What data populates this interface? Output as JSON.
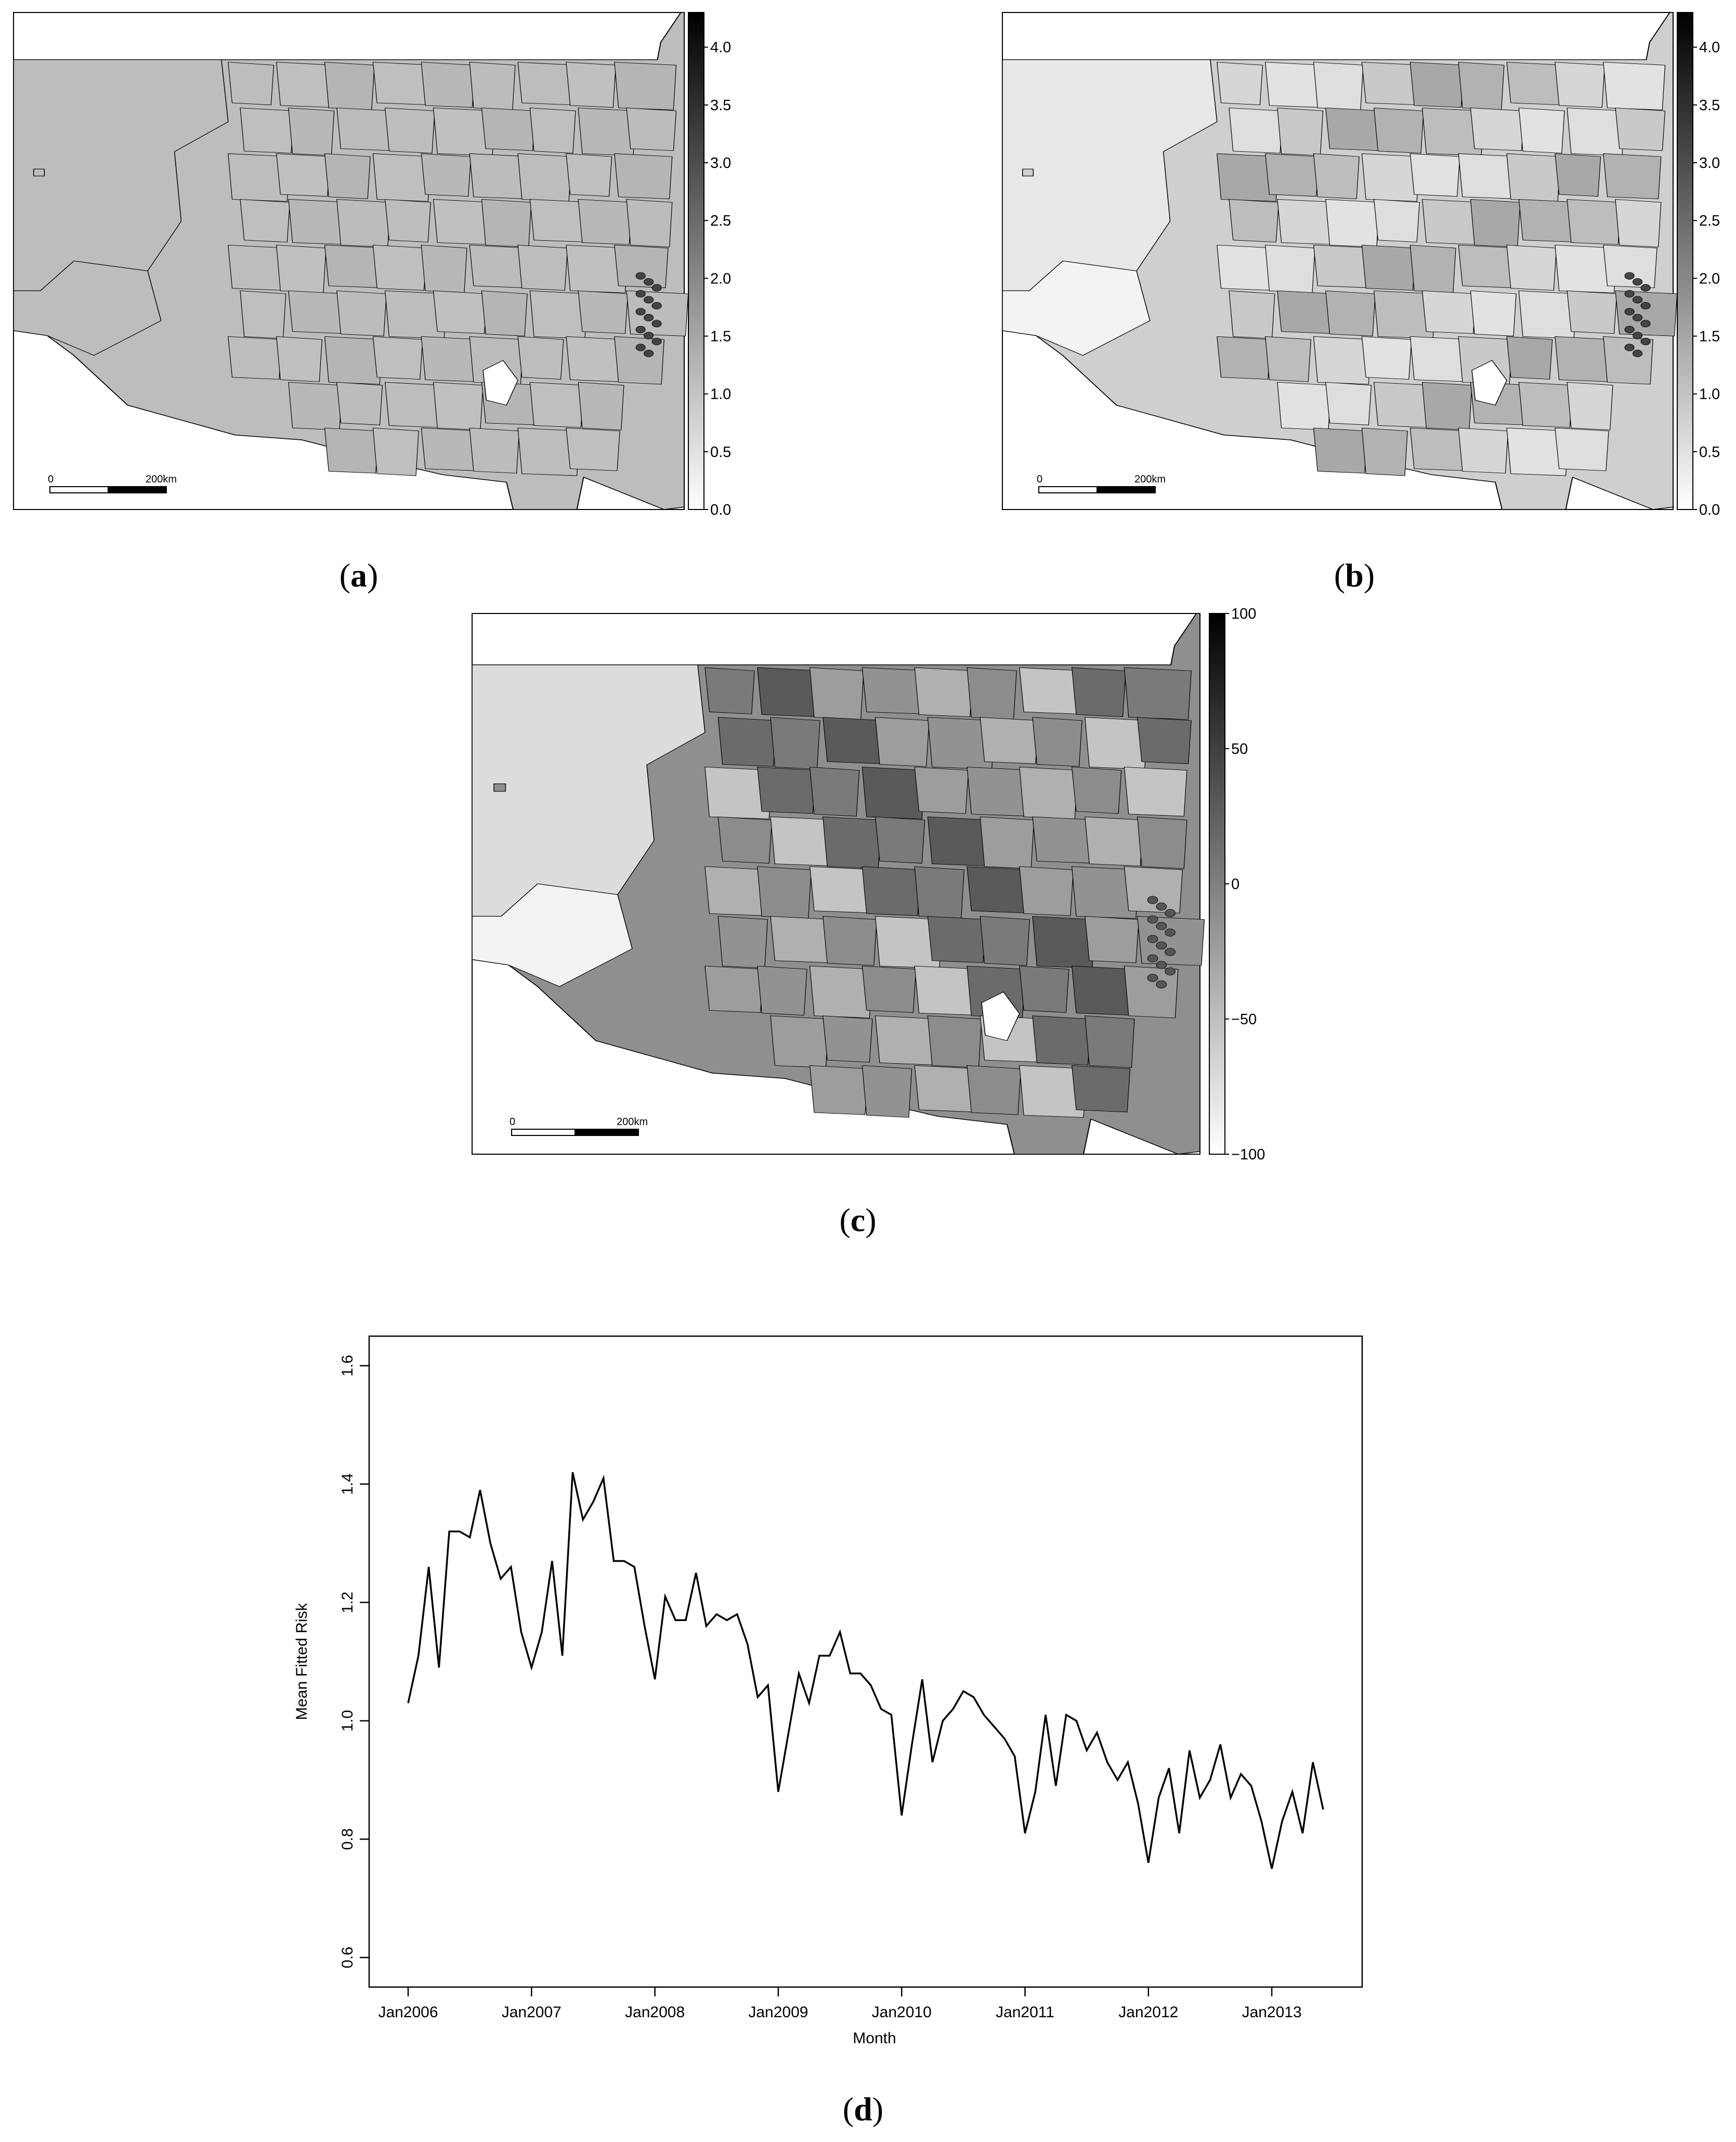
{
  "panels": {
    "a": {
      "caption_open": "(",
      "caption_letter": "a",
      "caption_close": ")",
      "colorbar_ticks": [
        "4.0",
        "3.5",
        "3.0",
        "2.5",
        "2.0",
        "1.5",
        "1.0",
        "0.5",
        "0.0"
      ],
      "colorbar_range": [
        0,
        4.3
      ],
      "scale_zero": "0",
      "scale_label": "200km",
      "base_shade": "#bdbdbd"
    },
    "b": {
      "caption_open": "(",
      "caption_letter": "b",
      "caption_close": ")",
      "colorbar_ticks": [
        "4.0",
        "3.5",
        "3.0",
        "2.5",
        "2.0",
        "1.5",
        "1.0",
        "0.5",
        "0.0"
      ],
      "colorbar_range": [
        0,
        4.3
      ],
      "scale_zero": "0",
      "scale_label": "200km",
      "base_shade": "#cfcfcf"
    },
    "c": {
      "caption_open": "(",
      "caption_letter": "c",
      "caption_close": ")",
      "colorbar_ticks": [
        "100",
        "50",
        "0",
        "−50",
        "−100"
      ],
      "colorbar_range": [
        -100,
        100
      ],
      "scale_zero": "0",
      "scale_label": "200km",
      "base_shade": "#8f8f8f"
    },
    "d": {
      "caption_open": "(",
      "caption_letter": "d",
      "caption_close": ")"
    }
  },
  "chart_data": {
    "type": "line",
    "xlabel": "Month",
    "ylabel": "Mean Fitted Risk",
    "ylim": [
      0.55,
      1.65
    ],
    "yticks": [
      "0.6",
      "0.8",
      "1.0",
      "1.2",
      "1.4",
      "1.6"
    ],
    "xticks": [
      "Jan2006",
      "Jan2007",
      "Jan2008",
      "Jan2009",
      "Jan2010",
      "Jan2011",
      "Jan2012",
      "Jan2013"
    ],
    "start": "Jan2006",
    "grid": false,
    "series": [
      {
        "values": [
          1.03,
          1.11,
          1.26,
          1.09,
          1.32,
          1.32,
          1.31,
          1.39,
          1.3,
          1.24,
          1.26,
          1.15,
          1.09,
          1.15,
          1.27,
          1.11,
          1.42,
          1.34,
          1.37,
          1.41,
          1.27,
          1.27,
          1.26,
          1.16,
          1.07,
          1.21,
          1.17,
          1.17,
          1.25,
          1.16,
          1.18,
          1.17,
          1.18,
          1.13,
          1.04,
          1.06,
          0.88,
          0.98,
          1.08,
          1.03,
          1.11,
          1.11,
          1.15,
          1.08,
          1.08,
          1.06,
          1.02,
          1.01,
          0.84,
          0.96,
          1.07,
          0.93,
          1.0,
          1.02,
          1.05,
          1.04,
          1.01,
          0.99,
          0.97,
          0.94,
          0.81,
          0.88,
          1.01,
          0.89,
          1.01,
          1.0,
          0.95,
          0.98,
          0.93,
          0.9,
          0.93,
          0.86,
          0.76,
          0.87,
          0.92,
          0.81,
          0.95,
          0.87,
          0.9,
          0.96,
          0.87,
          0.91,
          0.89,
          0.83,
          0.75,
          0.83,
          0.88,
          0.81,
          0.93,
          0.85
        ]
      }
    ]
  }
}
